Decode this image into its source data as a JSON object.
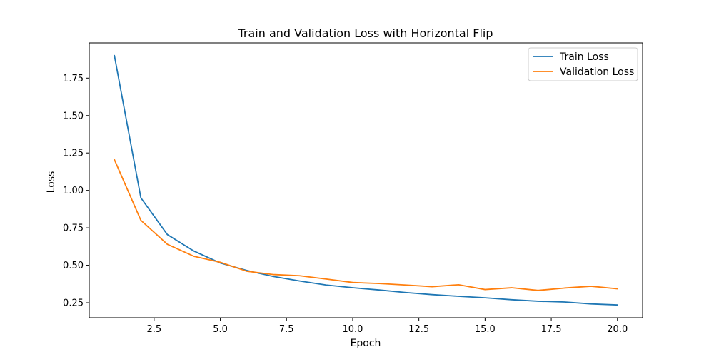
{
  "chart_data": {
    "type": "line",
    "title": "Train and Validation Loss with Horizontal Flip",
    "xlabel": "Epoch",
    "ylabel": "Loss",
    "xlim": [
      0.05,
      20.95
    ],
    "ylim": [
      0.15,
      1.985
    ],
    "x_ticks": [
      2.5,
      5.0,
      7.5,
      10.0,
      12.5,
      15.0,
      17.5,
      20.0
    ],
    "x_tick_labels": [
      "2.5",
      "5.0",
      "7.5",
      "10.0",
      "12.5",
      "15.0",
      "17.5",
      "20.0"
    ],
    "y_ticks": [
      0.25,
      0.5,
      0.75,
      1.0,
      1.25,
      1.5,
      1.75
    ],
    "y_tick_labels": [
      "0.25",
      "0.50",
      "0.75",
      "1.00",
      "1.25",
      "1.50",
      "1.75"
    ],
    "grid": false,
    "legend_position": "top-right",
    "x": [
      1,
      2,
      3,
      4,
      5,
      6,
      7,
      8,
      9,
      10,
      11,
      12,
      13,
      14,
      15,
      16,
      17,
      18,
      19,
      20
    ],
    "series": [
      {
        "name": "Train Loss",
        "color": "#1f77b4",
        "values": [
          1.9,
          0.95,
          0.705,
          0.595,
          0.515,
          0.465,
          0.425,
          0.395,
          0.368,
          0.35,
          0.335,
          0.318,
          0.304,
          0.293,
          0.283,
          0.27,
          0.26,
          0.255,
          0.242,
          0.235
        ]
      },
      {
        "name": "Validation Loss",
        "color": "#ff7f0e",
        "values": [
          1.205,
          0.8,
          0.64,
          0.56,
          0.52,
          0.46,
          0.438,
          0.43,
          0.408,
          0.385,
          0.378,
          0.368,
          0.357,
          0.37,
          0.338,
          0.35,
          0.332,
          0.348,
          0.36,
          0.343
        ]
      }
    ]
  }
}
